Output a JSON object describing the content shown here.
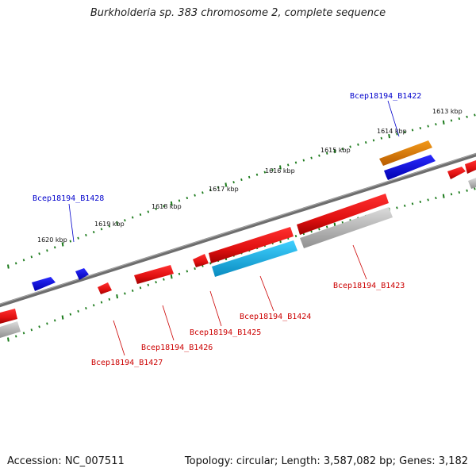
{
  "title": "Burkholderia sp. 383 chromosome 2, complete sequence",
  "footer": {
    "accession": "Accession: NC_007511",
    "topology": "Topology: circular; Length: 3,587,082 bp; Genes: 3,182"
  },
  "kbp_ticks": [
    "1613 kbp",
    "1614 kbp",
    "1615 kbp",
    "1616 kbp",
    "1617 kbp",
    "1618 kbp",
    "1619 kbp",
    "1620 kbp"
  ],
  "gene_labels": {
    "b1422": "Bcep18194_B1422",
    "b1423": "Bcep18194_B1423",
    "b1424": "Bcep18194_B1424",
    "b1425": "Bcep18194_B1425",
    "b1426": "Bcep18194_B1426",
    "b1427": "Bcep18194_B1427",
    "b1428": "Bcep18194_B1428"
  },
  "colors": {
    "forward_label": "#0000cc",
    "reverse_label": "#cc0000",
    "red_gene": "#ee1111",
    "blue_gene": "#1010ee",
    "orange_gene": "#e07b00",
    "cyan_gene": "#1ab8e8",
    "gray_gene": "#b8b8b8",
    "tick": "#1a7a1a",
    "backbone": "#777777"
  }
}
